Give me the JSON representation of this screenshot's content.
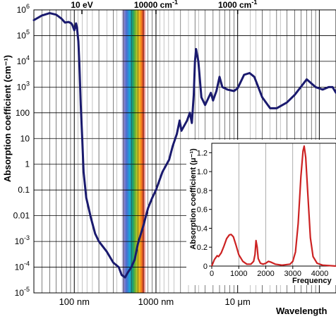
{
  "chart_data": [
    {
      "type": "line",
      "xscale": "log",
      "yscale": "log",
      "xlabel": "Wavelength",
      "ylabel": "Absorption coefficient (cm⁻¹)",
      "xlim_m": [
        3.2e-08,
        0.00016
      ],
      "ylim": [
        1e-05,
        1000000.0
      ],
      "bottom_ticks": [
        {
          "value": 1e-07,
          "label": "100 nm"
        },
        {
          "value": 1e-06,
          "label": "1000 nm"
        },
        {
          "value": 1e-05,
          "label": "10 μm"
        }
      ],
      "top_ticks": [
        {
          "value": 1.24e-07,
          "label": "10 eV"
        },
        {
          "value": 1e-06,
          "label": "10000 cm⁻¹"
        },
        {
          "value": 1e-05,
          "label": "1000 cm⁻¹"
        }
      ],
      "y_ticks": [
        {
          "value": 1000000.0,
          "base": "10",
          "exp": "6"
        },
        {
          "value": 100000.0,
          "base": "10",
          "exp": "5"
        },
        {
          "value": 10000.0,
          "base": "10",
          "exp": "4"
        },
        {
          "value": 1000.0,
          "base": "10",
          "exp": "3"
        },
        {
          "value": 100,
          "base": "100",
          "exp": ""
        },
        {
          "value": 10,
          "base": "10",
          "exp": ""
        },
        {
          "value": 1,
          "base": "1",
          "exp": ""
        },
        {
          "value": 0.1,
          "base": "0.1",
          "exp": ""
        },
        {
          "value": 0.01,
          "base": "0.01",
          "exp": ""
        },
        {
          "value": 0.001,
          "base": "10",
          "exp": "-3"
        },
        {
          "value": 0.0001,
          "base": "10",
          "exp": "-4"
        },
        {
          "value": 1e-05,
          "base": "10",
          "exp": "-5"
        }
      ],
      "visible_band_m": [
        3.8e-07,
        7.5e-07
      ],
      "grid": true,
      "series": [
        {
          "color": "#1a1a6e",
          "points": [
            [
              3.2e-08,
              400000.0
            ],
            [
              4e-08,
              600000.0
            ],
            [
              5e-08,
              750000.0
            ],
            [
              6e-08,
              650000.0
            ],
            [
              7e-08,
              450000.0
            ],
            [
              7.7e-08,
              320000.0
            ],
            [
              8.5e-08,
              340000.0
            ],
            [
              9.2e-08,
              300000.0
            ],
            [
              9.5e-08,
              250000.0
            ],
            [
              1e-07,
              160000.0
            ],
            [
              1.03e-07,
              220000.0
            ],
            [
              1.05e-07,
              300000.0
            ],
            [
              1.08e-07,
              200000.0
            ],
            [
              1.12e-07,
              60000.0
            ],
            [
              1.15e-07,
              10000.0
            ],
            [
              1.2e-07,
              200.0
            ],
            [
              1.25e-07,
              10
            ],
            [
              1.3e-07,
              0.5
            ],
            [
              1.4e-07,
              0.05
            ],
            [
              1.6e-07,
              0.008
            ],
            [
              1.8e-07,
              0.002
            ],
            [
              2e-07,
              0.001
            ],
            [
              2.5e-07,
              0.0004
            ],
            [
              3e-07,
              0.00015
            ],
            [
              3.5e-07,
              0.0001
            ],
            [
              3.8e-07,
              5e-05
            ],
            [
              4.18e-07,
              4e-05
            ],
            [
              4.5e-07,
              6e-05
            ],
            [
              5e-07,
              0.0001
            ],
            [
              5.5e-07,
              0.0002
            ],
            [
              6e-07,
              0.0008
            ],
            [
              7e-07,
              0.004
            ],
            [
              8e-07,
              0.02
            ],
            [
              9e-07,
              0.05
            ],
            [
              1e-06,
              0.1
            ],
            [
              1.2e-06,
              0.5
            ],
            [
              1.45e-06,
              1.5
            ],
            [
              1.6e-06,
              5
            ],
            [
              1.8e-06,
              15
            ],
            [
              1.95e-06,
              50
            ],
            [
              2.05e-06,
              20
            ],
            [
              2.4e-06,
              50
            ],
            [
              2.6e-06,
              100
            ],
            [
              2.75e-06,
              40
            ],
            [
              2.9e-06,
              500
            ],
            [
              3e-06,
              10000.0
            ],
            [
              3.1e-06,
              30000.0
            ],
            [
              3.3e-06,
              10000.0
            ],
            [
              3.6e-06,
              400
            ],
            [
              4e-06,
              200
            ],
            [
              4.7e-06,
              600
            ],
            [
              5e-06,
              300
            ],
            [
              5.5e-06,
              700
            ],
            [
              6e-06,
              2500.0
            ],
            [
              6.5e-06,
              1000.0
            ],
            [
              7.5e-06,
              800
            ],
            [
              9e-06,
              700
            ],
            [
              1e-05,
              900
            ],
            [
              1.2e-05,
              3000.0
            ],
            [
              1.4e-05,
              3500.0
            ],
            [
              1.6e-05,
              2500.0
            ],
            [
              2e-05,
              400
            ],
            [
              2.5e-05,
              150
            ],
            [
              3e-05,
              150
            ],
            [
              4e-05,
              250
            ],
            [
              5e-05,
              500
            ],
            [
              7e-05,
              2000.0
            ],
            [
              9e-05,
              1000.0
            ],
            [
              0.00011,
              800
            ],
            [
              0.00013,
              1000.0
            ],
            [
              0.000145,
              1000.0
            ],
            [
              0.00016,
              600
            ]
          ]
        }
      ]
    },
    {
      "type": "line",
      "inset": true,
      "xlabel": "Frequency",
      "ylabel": "Absorption coefficient (μ⁻¹)",
      "xlim": [
        0,
        4600
      ],
      "ylim": [
        0,
        1.3
      ],
      "x_ticks": [
        0,
        1000,
        2000,
        3000,
        4000
      ],
      "y_ticks": [
        0,
        0.2,
        0.4,
        0.6,
        0.8,
        1.0,
        1.2
      ],
      "grid": true,
      "series": [
        {
          "color": "#cc2222",
          "points": [
            [
              0,
              0.0
            ],
            [
              100,
              0.07
            ],
            [
              200,
              0.11
            ],
            [
              250,
              0.1
            ],
            [
              350,
              0.14
            ],
            [
              450,
              0.21
            ],
            [
              550,
              0.29
            ],
            [
              650,
              0.33
            ],
            [
              720,
              0.335
            ],
            [
              800,
              0.31
            ],
            [
              900,
              0.22
            ],
            [
              1000,
              0.12
            ],
            [
              1150,
              0.05
            ],
            [
              1300,
              0.02
            ],
            [
              1450,
              0.02
            ],
            [
              1550,
              0.05
            ],
            [
              1600,
              0.12
            ],
            [
              1640,
              0.27
            ],
            [
              1680,
              0.2
            ],
            [
              1720,
              0.08
            ],
            [
              1800,
              0.03
            ],
            [
              1900,
              0.02
            ],
            [
              2000,
              0.03
            ],
            [
              2100,
              0.05
            ],
            [
              2200,
              0.04
            ],
            [
              2350,
              0.02
            ],
            [
              2600,
              0.01
            ],
            [
              2900,
              0.02
            ],
            [
              3000,
              0.05
            ],
            [
              3100,
              0.15
            ],
            [
              3200,
              0.45
            ],
            [
              3300,
              0.95
            ],
            [
              3380,
              1.22
            ],
            [
              3420,
              1.27
            ],
            [
              3480,
              1.15
            ],
            [
              3550,
              0.8
            ],
            [
              3650,
              0.3
            ],
            [
              3750,
              0.1
            ],
            [
              3900,
              0.03
            ],
            [
              4100,
              0.01
            ],
            [
              4600,
              0.0
            ]
          ]
        }
      ]
    }
  ]
}
